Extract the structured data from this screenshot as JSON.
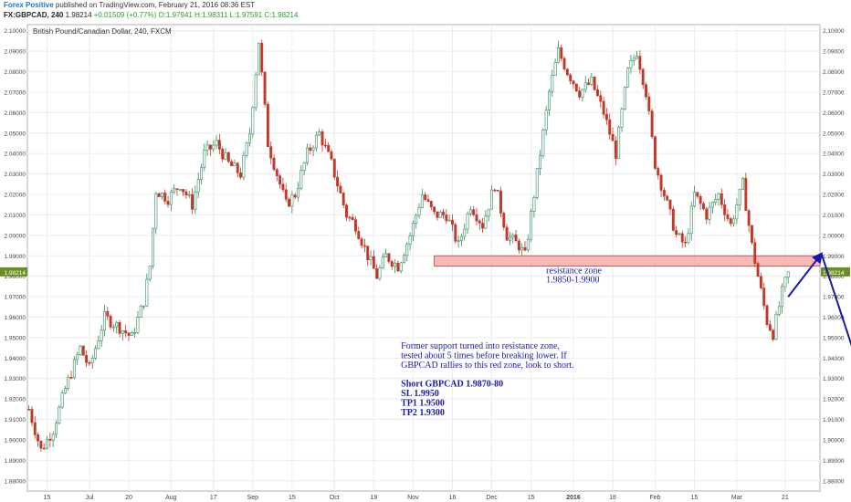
{
  "header": {
    "author": "Forex Positive",
    "published": "published on TradingView.com, February 21, 2016 08:36 EST",
    "symbol": "FX:GBPCAD, 240",
    "last": "1.98214",
    "change": "+0.01509 (+0.77%)",
    "open": "O:1.97941",
    "high": "H:1.98311",
    "low": "L:1.97591",
    "close": "C:1.98214"
  },
  "colors": {
    "up": "#2e8b57",
    "down": "#c0392b",
    "zone_fill": "#f4a3a3",
    "zone_stroke": "#d9534f",
    "annotation": "#1a1aa6",
    "last_badge": "#6b8e23"
  },
  "chart_data": {
    "type": "candlestick",
    "title": "British Pound/Canadian Dollar, 240, FXCM",
    "y_range": [
      1.875,
      2.103
    ],
    "y_ticks": [
      "2.10000",
      "2.09000",
      "2.08000",
      "2.07000",
      "2.06000",
      "2.05000",
      "2.04000",
      "2.03000",
      "2.02000",
      "2.01000",
      "2.00000",
      "1.99000",
      "1.98000",
      "1.97000",
      "1.96000",
      "1.95000",
      "1.94000",
      "1.93000",
      "1.92000",
      "1.91000",
      "1.90000",
      "1.89000",
      "1.88000"
    ],
    "last_price_label": "1.98214",
    "x_ticks": [
      {
        "label": "15",
        "idx": 6
      },
      {
        "label": "Jul",
        "idx": 20
      },
      {
        "label": "20",
        "idx": 33
      },
      {
        "label": "Aug",
        "idx": 47
      },
      {
        "label": "17",
        "idx": 61
      },
      {
        "label": "Sep",
        "idx": 74
      },
      {
        "label": "15",
        "idx": 87
      },
      {
        "label": "Oct",
        "idx": 101
      },
      {
        "label": "19",
        "idx": 114
      },
      {
        "label": "Nov",
        "idx": 127
      },
      {
        "label": "16",
        "idx": 140
      },
      {
        "label": "Dec",
        "idx": 153
      },
      {
        "label": "15",
        "idx": 166
      },
      {
        "label": "2016",
        "idx": 180
      },
      {
        "label": "18",
        "idx": 193
      },
      {
        "label": "Feb",
        "idx": 207
      },
      {
        "label": "15",
        "idx": 220
      },
      {
        "label": "Mar",
        "idx": 234
      },
      {
        "label": "21",
        "idx": 250
      }
    ],
    "n_slots": 262,
    "path_anchors": [
      [
        0,
        1.915
      ],
      [
        4,
        1.895
      ],
      [
        8,
        1.905
      ],
      [
        12,
        1.925
      ],
      [
        17,
        1.945
      ],
      [
        20,
        1.935
      ],
      [
        25,
        1.96
      ],
      [
        30,
        1.955
      ],
      [
        34,
        1.95
      ],
      [
        38,
        1.968
      ],
      [
        40,
        1.985
      ],
      [
        42,
        2.022
      ],
      [
        46,
        2.018
      ],
      [
        50,
        2.025
      ],
      [
        54,
        2.015
      ],
      [
        58,
        2.04
      ],
      [
        62,
        2.045
      ],
      [
        66,
        2.035
      ],
      [
        70,
        2.03
      ],
      [
        73,
        2.05
      ],
      [
        76,
        2.095
      ],
      [
        79,
        2.045
      ],
      [
        82,
        2.03
      ],
      [
        85,
        2.015
      ],
      [
        88,
        2.02
      ],
      [
        92,
        2.04
      ],
      [
        96,
        2.05
      ],
      [
        100,
        2.035
      ],
      [
        105,
        2.01
      ],
      [
        108,
        2.005
      ],
      [
        112,
        1.99
      ],
      [
        115,
        1.98
      ],
      [
        118,
        1.99
      ],
      [
        122,
        1.985
      ],
      [
        126,
        2.0
      ],
      [
        130,
        2.02
      ],
      [
        134,
        2.01
      ],
      [
        138,
        2.01
      ],
      [
        142,
        1.995
      ],
      [
        146,
        2.015
      ],
      [
        150,
        2.005
      ],
      [
        154,
        2.025
      ],
      [
        158,
        2.0
      ],
      [
        162,
        1.995
      ],
      [
        164,
        1.99
      ],
      [
        168,
        2.03
      ],
      [
        172,
        2.07
      ],
      [
        175,
        2.09
      ],
      [
        178,
        2.08
      ],
      [
        182,
        2.07
      ],
      [
        186,
        2.075
      ],
      [
        190,
        2.06
      ],
      [
        194,
        2.04
      ],
      [
        198,
        2.08
      ],
      [
        201,
        2.09
      ],
      [
        204,
        2.07
      ],
      [
        207,
        2.035
      ],
      [
        210,
        2.02
      ],
      [
        214,
        2.0
      ],
      [
        217,
        1.995
      ],
      [
        220,
        2.02
      ],
      [
        224,
        2.01
      ],
      [
        228,
        2.02
      ],
      [
        232,
        2.005
      ],
      [
        236,
        2.025
      ],
      [
        239,
        1.995
      ],
      [
        241,
        1.98
      ],
      [
        244,
        1.958
      ],
      [
        246,
        1.952
      ],
      [
        249,
        1.972
      ],
      [
        251,
        1.982
      ]
    ],
    "resistance_zone": {
      "low": 1.985,
      "high": 1.99,
      "from_idx": 134,
      "label": "resistance zone",
      "range_label": "1.9850-1.9900"
    },
    "arrows": [
      {
        "from": [
          251,
          1.97
        ],
        "to": [
          262,
          1.991
        ]
      },
      {
        "from": [
          262,
          1.991
        ],
        "to": [
          276,
          1.928
        ]
      }
    ],
    "annotations": [
      "Former support turned into resistance zone,",
      "tested about 5 times before breaking lower. If",
      "GBPCAD rallies to this red zone, look to short.",
      "",
      "Short GBPCAD 1.9870-80",
      "SL 1.9950",
      "TP1 1.9500",
      "TP2 1.9300"
    ]
  }
}
